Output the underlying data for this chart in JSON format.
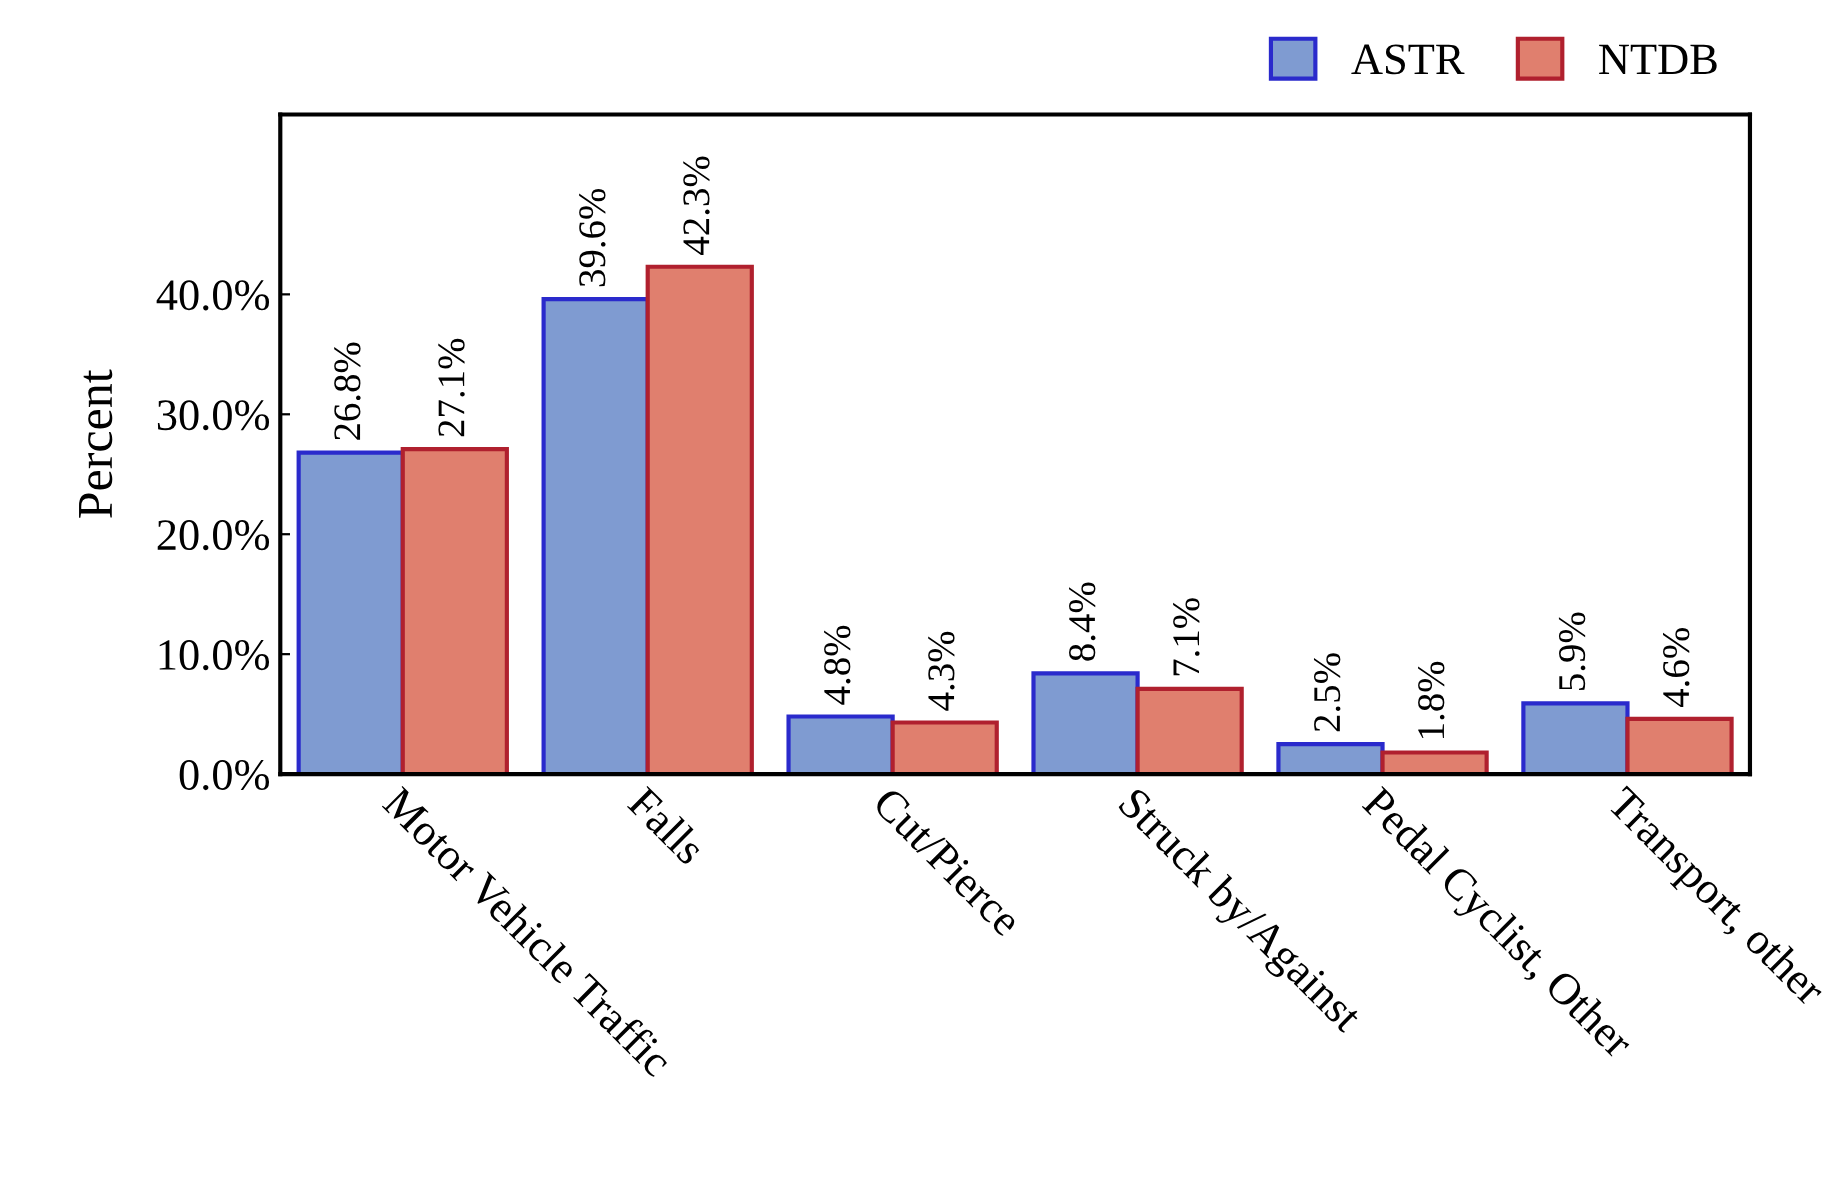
{
  "chart_data": {
    "type": "bar",
    "ylabel": "Percent",
    "categories": [
      "Motor Vehicle Traffic",
      "Falls",
      "Cut/Pierce",
      "Struck by/Against",
      "Pedal Cyclist, Other",
      "Transport, other"
    ],
    "series": [
      {
        "name": "ASTR",
        "color": "#7f9bd1",
        "values": [
          26.8,
          39.6,
          4.8,
          8.4,
          2.5,
          5.9
        ],
        "value_labels": [
          "26.8%",
          "39.6%",
          "4.8%",
          "8.4%",
          "2.5%",
          "5.9%"
        ]
      },
      {
        "name": "NTDB",
        "color": "#e07f6e",
        "values": [
          27.1,
          42.3,
          4.3,
          7.1,
          1.8,
          4.6
        ],
        "value_labels": [
          "27.1%",
          "42.3%",
          "4.3%",
          "7.1%",
          "1.8%",
          "4.6%"
        ]
      }
    ],
    "ylim": [
      0,
      55
    ],
    "yticks": [
      {
        "value": 0,
        "label": "0.0%"
      },
      {
        "value": 10,
        "label": "10.0%"
      },
      {
        "value": 20,
        "label": "20.0%"
      },
      {
        "value": 30,
        "label": "30.0%"
      },
      {
        "value": 40,
        "label": "40.0%"
      }
    ],
    "legend": "top right",
    "grid": false
  }
}
